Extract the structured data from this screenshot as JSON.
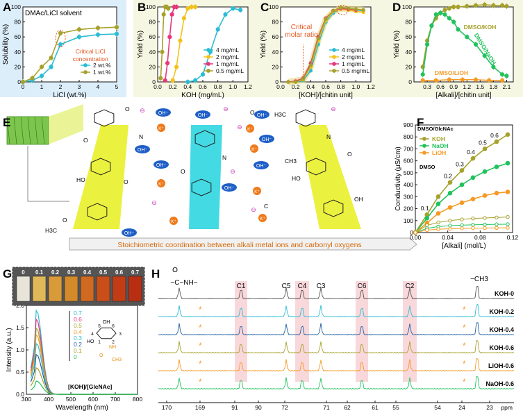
{
  "chart_data": [
    {
      "panel": "A",
      "type": "line",
      "title": "DMAc/LiCl solvent",
      "xlabel": "LiCl (wt.%)",
      "ylabel": "Solubility (%)",
      "xlim": [
        0,
        5
      ],
      "ylim": [
        0,
        100
      ],
      "xticks": [
        "0",
        "1",
        "2",
        "3",
        "4",
        "5"
      ],
      "yticks": [
        "0",
        "20",
        "40",
        "60",
        "80",
        "100"
      ],
      "annotation": "Critical LiCl concentration",
      "legend": "bottom-right",
      "series": [
        {
          "name": "2 wt.%",
          "color": "#2bbcd4",
          "x": [
            0,
            0.5,
            1,
            1.5,
            2,
            3,
            4,
            5
          ],
          "y": [
            0,
            2,
            8,
            20,
            50,
            60,
            63,
            64
          ]
        },
        {
          "name": "1 wt.%",
          "color": "#a6a12b",
          "x": [
            0,
            0.5,
            1,
            1.5,
            2,
            3,
            4,
            5
          ],
          "y": [
            0,
            5,
            20,
            32,
            65,
            70,
            72,
            73
          ]
        }
      ]
    },
    {
      "panel": "B",
      "type": "line",
      "xlabel": "KOH (mg/mL)",
      "ylabel": "Yield (%)",
      "xlim": [
        0,
        1.2
      ],
      "ylim": [
        0,
        100
      ],
      "xticks": [
        "0.0",
        "0.2",
        "0.4",
        "0.6",
        "0.8",
        "1.0",
        "1.2"
      ],
      "yticks": [
        "0",
        "20",
        "40",
        "60",
        "80",
        "100"
      ],
      "legend": "bottom-right",
      "series": [
        {
          "name": "4 mg/mL",
          "color": "#2bbcd4",
          "x": [
            0.4,
            0.5,
            0.6,
            0.7,
            0.8,
            0.9,
            1.0,
            1.1
          ],
          "y": [
            0,
            2,
            10,
            40,
            70,
            90,
            98,
            96
          ]
        },
        {
          "name": "2 mg/mL",
          "color": "#f2c21c",
          "x": [
            0.2,
            0.25,
            0.3,
            0.35,
            0.4,
            0.45,
            0.5
          ],
          "y": [
            2,
            20,
            55,
            85,
            98,
            100,
            100
          ]
        },
        {
          "name": "1 mg/mL",
          "color": "#e8367a",
          "x": [
            0.1,
            0.13,
            0.16,
            0.19,
            0.22,
            0.25
          ],
          "y": [
            2,
            25,
            60,
            90,
            100,
            100
          ]
        },
        {
          "name": "0.5 mg/mL",
          "color": "#a6a12b",
          "x": [
            0.04,
            0.06,
            0.08,
            0.1,
            0.12,
            0.14
          ],
          "y": [
            5,
            40,
            90,
            100,
            100,
            98
          ]
        }
      ]
    },
    {
      "panel": "C",
      "type": "line",
      "xlabel": "[KOH]/[chitin unit]",
      "ylabel": "Yield (%)",
      "xlim": [
        0,
        1.2
      ],
      "ylim": [
        0,
        100
      ],
      "xticks": [
        "0.0",
        "0.2",
        "0.4",
        "0.6",
        "0.8",
        "1.0",
        "1.2"
      ],
      "yticks": [
        "0",
        "20",
        "40",
        "60",
        "80",
        "100"
      ],
      "legend": "bottom-right",
      "annotation": "Critical molar ratio",
      "series": [
        {
          "name": "4 mg/mL",
          "color": "#2bbcd4",
          "x": [
            0.1,
            0.2,
            0.3,
            0.4,
            0.5,
            0.6,
            0.7,
            0.8,
            0.9,
            1.0,
            1.1
          ],
          "y": [
            0,
            0,
            2,
            15,
            50,
            80,
            92,
            98,
            97,
            96,
            95
          ]
        },
        {
          "name": "2 mg/mL",
          "color": "#f2c21c",
          "x": [
            0.1,
            0.2,
            0.3,
            0.4,
            0.5,
            0.6,
            0.7,
            0.8,
            0.9,
            1.0,
            1.1
          ],
          "y": [
            0,
            0,
            3,
            20,
            55,
            82,
            94,
            97,
            96,
            94,
            93
          ]
        },
        {
          "name": "1 mg/mL",
          "color": "#e8367a",
          "x": [
            0.1,
            0.2,
            0.3,
            0.4,
            0.5,
            0.6,
            0.7,
            0.8,
            0.9,
            1.0
          ],
          "y": [
            0,
            1,
            5,
            25,
            60,
            85,
            95,
            98,
            97,
            96
          ]
        },
        {
          "name": "0.5 mg/mL",
          "color": "#a6a12b",
          "x": [
            0.1,
            0.2,
            0.3,
            0.4,
            0.5,
            0.6,
            0.7,
            0.8,
            0.9,
            1.0,
            1.1
          ],
          "y": [
            0,
            0,
            4,
            22,
            58,
            84,
            95,
            99,
            98,
            97,
            96
          ]
        }
      ]
    },
    {
      "panel": "D",
      "type": "line",
      "xlabel": "[Alkali]/[chitin unit]",
      "ylabel": "Yield (%)",
      "xlim": [
        0,
        2.25
      ],
      "ylim": [
        0,
        100
      ],
      "xticks": [
        "0.3",
        "0.6",
        "0.9",
        "1.2",
        "1.5",
        "1.8",
        "2.1"
      ],
      "xtick_values": [
        0.3,
        0.6,
        0.9,
        1.2,
        1.5,
        1.8,
        2.1
      ],
      "yticks": [
        "0",
        "20",
        "40",
        "60",
        "80",
        "100"
      ],
      "labels": [
        "DMSO/KOH",
        "DMSO/NaOH",
        "DMSO/LiOH"
      ],
      "series": [
        {
          "name": "DMSO/KOH",
          "color": "#a6a12b",
          "x": [
            0.2,
            0.3,
            0.4,
            0.5,
            0.6,
            0.7,
            0.8,
            0.9,
            1.0,
            1.2,
            1.4,
            1.6,
            1.8,
            2.0,
            2.1
          ],
          "y": [
            20,
            55,
            75,
            85,
            92,
            96,
            98,
            100,
            100,
            101,
            102,
            103,
            102,
            102,
            101
          ]
        },
        {
          "name": "DMSO/NaOH",
          "color": "#22c25e",
          "x": [
            0.2,
            0.3,
            0.4,
            0.5,
            0.6,
            0.7,
            0.8,
            0.9,
            1.0,
            1.2,
            1.4,
            1.6,
            1.8,
            2.0,
            2.1
          ],
          "y": [
            10,
            50,
            75,
            90,
            92,
            90,
            85,
            80,
            70,
            60,
            50,
            35,
            20,
            10,
            8
          ]
        },
        {
          "name": "DMSO/LiOH",
          "color": "#f59a25",
          "x": [
            0.2,
            0.5,
            0.8,
            1.1,
            1.4,
            1.7,
            2.0
          ],
          "y": [
            2,
            2,
            3,
            3,
            3,
            2,
            2
          ]
        }
      ]
    },
    {
      "panel": "F",
      "type": "line",
      "xlabel": "[Alkali] (mol/L)",
      "ylabel": "Conductivity (μS/cm)",
      "xlim": [
        0,
        0.14
      ],
      "ylim": [
        0,
        900
      ],
      "xticks": [
        "0.00",
        "0.04",
        "0.08",
        "0.12"
      ],
      "yticks": [
        "0",
        "100",
        "200",
        "300",
        "400",
        "500",
        "600",
        "700",
        "800",
        "900"
      ],
      "legend_title": "DMSO/GlcNAc",
      "legend_note": "DMSO",
      "ratio_labels": [
        "0.1",
        "0.2",
        "0.3",
        "0.4",
        "0.5",
        "0.6"
      ],
      "series": [
        {
          "name": "KOH",
          "color": "#a6a12b",
          "x": [
            0,
            0.0167,
            0.033,
            0.05,
            0.067,
            0.083,
            0.1,
            0.117,
            0.133
          ],
          "y": [
            0,
            150,
            300,
            420,
            520,
            620,
            700,
            760,
            820
          ]
        },
        {
          "name": "NaOH",
          "color": "#22c25e",
          "x": [
            0,
            0.0167,
            0.033,
            0.05,
            0.067,
            0.083,
            0.1,
            0.117,
            0.133
          ],
          "y": [
            0,
            120,
            240,
            330,
            400,
            460,
            510,
            550,
            580
          ]
        },
        {
          "name": "LiOH",
          "color": "#f59a25",
          "x": [
            0,
            0.0167,
            0.033,
            0.05,
            0.067,
            0.083,
            0.1,
            0.117,
            0.133
          ],
          "y": [
            0,
            80,
            160,
            210,
            250,
            280,
            310,
            330,
            340
          ]
        },
        {
          "name": "KOH (DMSO)",
          "color": "#a6a12b",
          "x": [
            0,
            0.0167,
            0.033,
            0.05,
            0.067,
            0.083,
            0.1,
            0.117,
            0.133
          ],
          "y": [
            0,
            60,
            85,
            100,
            110,
            118,
            122,
            126,
            130
          ]
        },
        {
          "name": "NaOH (DMSO)",
          "color": "#22c25e",
          "x": [
            0,
            0.0167,
            0.033,
            0.05,
            0.067,
            0.083,
            0.1,
            0.117,
            0.133
          ],
          "y": [
            0,
            35,
            50,
            58,
            62,
            65,
            67,
            69,
            70
          ]
        },
        {
          "name": "LiOH (DMSO)",
          "color": "#f59a25",
          "x": [
            0,
            0.0167,
            0.033,
            0.05,
            0.067,
            0.083,
            0.1,
            0.117,
            0.133
          ],
          "y": [
            0,
            20,
            28,
            32,
            35,
            37,
            38,
            39,
            40
          ]
        }
      ]
    },
    {
      "panel": "G",
      "type": "line",
      "xlabel": "Wavelength (nm)",
      "ylabel": "Intensity (a.u.)",
      "xlim": [
        300,
        800
      ],
      "ylim": [
        0,
        2.0
      ],
      "xticks": [
        "300",
        "400",
        "500",
        "600",
        "700",
        "800"
      ],
      "yticks": [
        "0.0",
        "0.5",
        "1.0",
        "1.5",
        "2.0"
      ],
      "legend": [
        "0.7",
        "0.6",
        "0.5",
        "0.4",
        "0.3",
        "0.2",
        "0.1",
        "0"
      ],
      "legend_title": "[KOH]/[GlcNAc]",
      "vial_labels": [
        "0",
        "0.1",
        "0.2",
        "0.3",
        "0.4",
        "0.5",
        "0.6",
        "0.7"
      ],
      "vial_colors": [
        "#e9e4da",
        "#e0b85a",
        "#d99a3a",
        "#d48a2a",
        "#cf6a20",
        "#c94e1a",
        "#c23c16",
        "#b82e12"
      ],
      "structure_numbers": [
        "4",
        "5",
        "6",
        "3",
        "2",
        "1"
      ],
      "structure_groups": [
        "OH",
        "HO",
        "NH",
        "O",
        "CH3"
      ],
      "peak_heights": [
        1.9,
        1.7,
        1.5,
        1.35,
        1.15,
        0.9,
        0.6,
        0.3
      ],
      "colors": [
        "#2bbcd4",
        "#e8367a",
        "#a6a12b",
        "#f59a25",
        "#2bbcd4",
        "#1f5fa0",
        "#a6a12b",
        "#22c25e"
      ]
    },
    {
      "panel": "H",
      "type": "line",
      "xlabel": "ppm",
      "xticks": [
        "170",
        "169",
        "91",
        "90",
        "72",
        "71",
        "62",
        "61",
        "55",
        "54",
        "24",
        "23",
        "ppm"
      ],
      "peaks": [
        "C1",
        "C5",
        "C4",
        "C3",
        "C6",
        "C2"
      ],
      "group_labels": [
        "−C−NH−",
        "O",
        "−CH3"
      ],
      "traces": [
        "KOH-0",
        "KOH-0.2",
        "KOH-0.4",
        "KOH-0.6",
        "LiOH-0.6",
        "NaOH-0.6"
      ],
      "trace_colors": [
        "#555555",
        "#2bbcd4",
        "#1f5fa0",
        "#a6a12b",
        "#f59a25",
        "#22c25e"
      ]
    }
  ],
  "panel_E": {
    "caption": "Stoichiometric coordination between alkali metal ions and carbonyl oxygens",
    "ions": [
      "OH⁻",
      "K⁺"
    ],
    "atoms": [
      "O",
      "N",
      "H",
      "HO",
      "OH",
      "C",
      "CH3",
      "H3C",
      "H3C",
      "⊖"
    ]
  },
  "panel_labels": [
    "A",
    "B",
    "C",
    "D",
    "E",
    "F",
    "G",
    "H"
  ]
}
